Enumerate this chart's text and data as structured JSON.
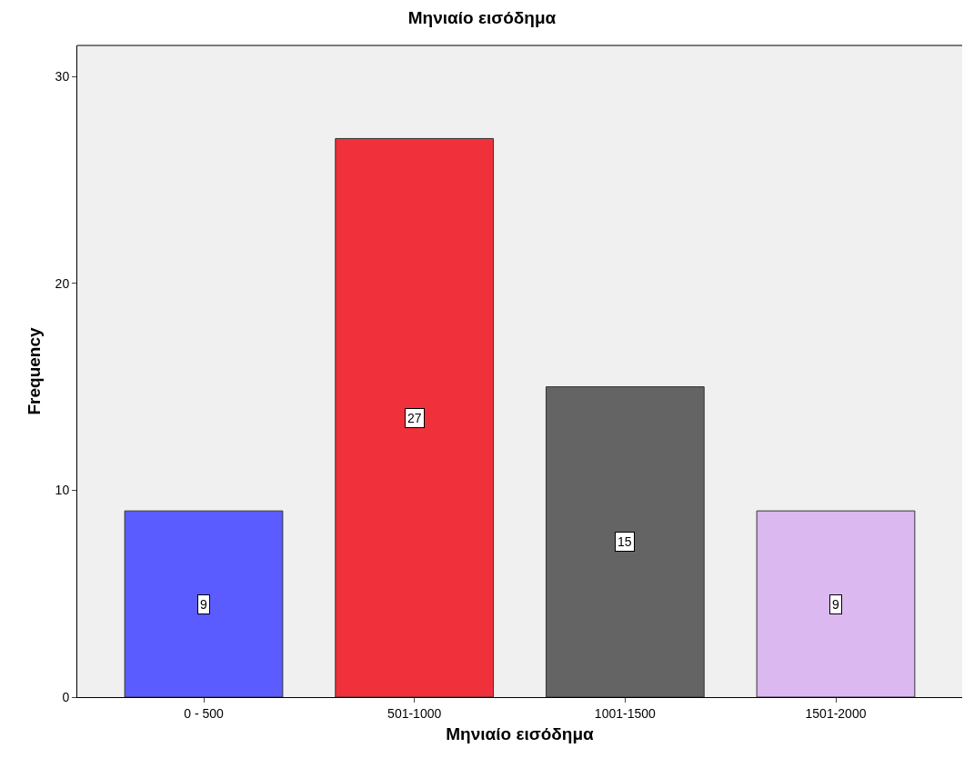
{
  "chart_data": {
    "type": "bar",
    "title": "Μηνιαίο εισόδημα",
    "xlabel": "Μηνιαίο εισόδημα",
    "ylabel": "Frequency",
    "categories": [
      "0 - 500",
      "501-1000",
      "1001-1500",
      "1501-2000"
    ],
    "values": [
      9,
      27,
      15,
      9
    ],
    "colors": [
      "#5a5cff",
      "#f0303a",
      "#646464",
      "#dcb8f0"
    ],
    "ylim": [
      0,
      31.5
    ],
    "yticks": [
      0,
      10,
      20,
      30
    ],
    "grid": false,
    "legend": false,
    "data_labels": true
  }
}
